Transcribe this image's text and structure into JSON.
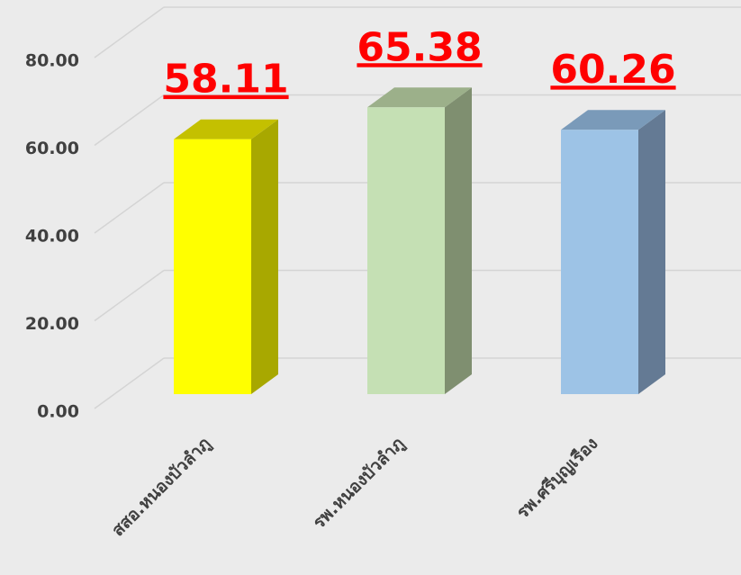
{
  "chart_data": {
    "type": "bar3d",
    "categories": [
      "สสอ.หนองบัวลำภู",
      "รพ.หนองบัวลำภู",
      "รพ.ศรีบุญเรือง"
    ],
    "values": [
      58.11,
      65.38,
      60.26
    ],
    "colors": [
      "#ffff00",
      "#c5e0b4",
      "#9dc3e6"
    ],
    "side_colors": [
      "#a8a800",
      "#7f8f70",
      "#647a94"
    ],
    "top_colors": [
      "#c4c000",
      "#9cb08a",
      "#7a9ab9"
    ],
    "value_label_color": "#ff0000",
    "ylim": [
      0,
      80
    ],
    "yticks": [
      {
        "value": 0,
        "label": "0.00"
      },
      {
        "value": 20,
        "label": "20.00"
      },
      {
        "value": 40,
        "label": "40.00"
      },
      {
        "value": 60,
        "label": "60.00"
      },
      {
        "value": 80,
        "label": "80.00"
      }
    ],
    "grid": true
  }
}
